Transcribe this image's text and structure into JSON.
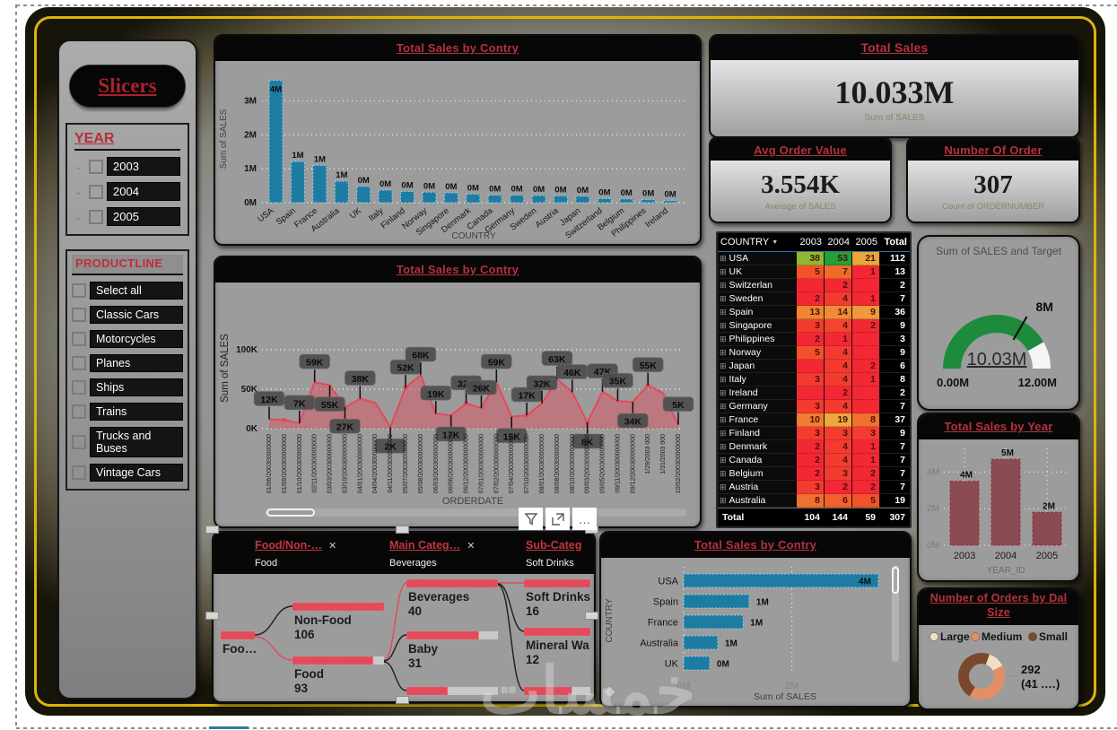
{
  "watermark": "خمسات",
  "colors": {
    "title_red": "#b4323c",
    "teal_bar": "#1e7ca2",
    "teal_bar_edge": "#8fd0e8",
    "line_red": "#e34a5a",
    "area_pink": "rgba(226,78,94,0.45)",
    "maroon_bar": "#8a4b53",
    "maroon_edge": "#9c2f38",
    "gauge_green": "#1d8a3c",
    "gauge_rest": "#f5f5f5",
    "gold_border": "#d9b50b",
    "donut_large": "#efe0c6",
    "donut_medium": "#e38f66",
    "donut_small": "#7a482c"
  },
  "sidebar": {
    "title": "Slicers",
    "year": {
      "label": "YEAR",
      "items": [
        "2003",
        "2004",
        "2005"
      ]
    },
    "productline": {
      "label": "PRODUCTLINE",
      "items": [
        "Select all",
        "Classic Cars",
        "Motorcycles",
        "Planes",
        "Ships",
        "Trains",
        "Trucks and Buses",
        "Vintage Cars"
      ]
    }
  },
  "cards": {
    "total_sales": {
      "title": "Total Sales",
      "value": "10.033M",
      "caption": "Sum of SALES"
    },
    "avg_order": {
      "title": "Avg Order Value",
      "value": "3.554K",
      "caption": "Average of SALES"
    },
    "num_order": {
      "title": "Number Of Order",
      "value": "307",
      "caption": "Count of ORDERNUMBER"
    }
  },
  "toolbar": {
    "filter": "filter",
    "focus": "focus-mode",
    "more": "…"
  },
  "matrix": {
    "columns": [
      "COUNTRY",
      "2003",
      "2004",
      "2005",
      "Total"
    ],
    "rows": [
      {
        "country": "USA",
        "values": [
          "38",
          "53",
          "21"
        ],
        "colors": [
          "#8fb832",
          "#23a038",
          "#e9a63b"
        ],
        "total": "112"
      },
      {
        "country": "UK",
        "values": [
          "5",
          "7",
          "1"
        ],
        "colors": [
          "#f2522a",
          "#f06a2c",
          "#f42735"
        ],
        "total": "13"
      },
      {
        "country": "Switzerlan",
        "values": [
          "",
          "2",
          ""
        ],
        "colors": [
          "#f42735",
          "#f42735",
          "#f42735"
        ],
        "total": "2"
      },
      {
        "country": "Sweden",
        "values": [
          "2",
          "4",
          "1"
        ],
        "colors": [
          "#f42735",
          "#f43b2f",
          "#f42735"
        ],
        "total": "7"
      },
      {
        "country": "Spain",
        "values": [
          "13",
          "14",
          "9"
        ],
        "colors": [
          "#ef8532",
          "#ef8b35",
          "#ef9a38"
        ],
        "total": "36"
      },
      {
        "country": "Singapore",
        "values": [
          "3",
          "4",
          "2"
        ],
        "colors": [
          "#f43b2f",
          "#f4432f",
          "#f42735"
        ],
        "total": "9"
      },
      {
        "country": "Philippines",
        "values": [
          "2",
          "1",
          ""
        ],
        "colors": [
          "#f42735",
          "#f42735",
          "#f42735"
        ],
        "total": "3"
      },
      {
        "country": "Norway",
        "values": [
          "5",
          "4",
          ""
        ],
        "colors": [
          "#f2522a",
          "#f43b2f",
          "#f42735"
        ],
        "total": "9"
      },
      {
        "country": "Japan",
        "values": [
          "",
          "4",
          "2"
        ],
        "colors": [
          "#f42735",
          "#f43b2f",
          "#f42735"
        ],
        "total": "6"
      },
      {
        "country": "Italy",
        "values": [
          "3",
          "4",
          "1"
        ],
        "colors": [
          "#f43b2f",
          "#f43b2f",
          "#f42735"
        ],
        "total": "8"
      },
      {
        "country": "Ireland",
        "values": [
          "",
          "2",
          ""
        ],
        "colors": [
          "#f42735",
          "#f42735",
          "#f42735"
        ],
        "total": "2"
      },
      {
        "country": "Germany",
        "values": [
          "3",
          "4",
          ""
        ],
        "colors": [
          "#f43b2f",
          "#f43b2f",
          "#f42735"
        ],
        "total": "7"
      },
      {
        "country": "France",
        "values": [
          "10",
          "19",
          "8"
        ],
        "colors": [
          "#f07d30",
          "#e9a93c",
          "#f0702d"
        ],
        "total": "37"
      },
      {
        "country": "Finland",
        "values": [
          "3",
          "3",
          "3"
        ],
        "colors": [
          "#f43b2f",
          "#f43b2f",
          "#f43b2f"
        ],
        "total": "9"
      },
      {
        "country": "Denmark",
        "values": [
          "2",
          "4",
          "1"
        ],
        "colors": [
          "#f42735",
          "#f43b2f",
          "#f42735"
        ],
        "total": "7"
      },
      {
        "country": "Canada",
        "values": [
          "2",
          "4",
          "1"
        ],
        "colors": [
          "#f42735",
          "#f43b2f",
          "#f42735"
        ],
        "total": "7"
      },
      {
        "country": "Belgium",
        "values": [
          "2",
          "3",
          "2"
        ],
        "colors": [
          "#f42735",
          "#f43b2f",
          "#f42735"
        ],
        "total": "7"
      },
      {
        "country": "Austria",
        "values": [
          "3",
          "2",
          "2"
        ],
        "colors": [
          "#f43b2f",
          "#f42735",
          "#f42735"
        ],
        "total": "7"
      },
      {
        "country": "Australia",
        "values": [
          "8",
          "6",
          "5"
        ],
        "colors": [
          "#f0702d",
          "#f2612b",
          "#f2522a"
        ],
        "total": "19"
      }
    ],
    "total_row": {
      "label": "Total",
      "values": [
        "104",
        "144",
        "59"
      ],
      "total": "307"
    }
  },
  "tree": {
    "breadcrumbs": [
      {
        "title": "Food/Non-…",
        "close": "✕",
        "value": "Food"
      },
      {
        "title": "Main Categ…",
        "close": "✕",
        "value": "Beverages"
      },
      {
        "title": "Sub-Categ",
        "close": "",
        "value": "Soft Drinks"
      }
    ],
    "root": {
      "label": "Foo…",
      "fill": 100
    },
    "level1": [
      {
        "label": "Non-Food",
        "value": "106",
        "fill": 100
      },
      {
        "label": "Food",
        "value": "93",
        "fill": 88
      }
    ],
    "level2": [
      {
        "label": "Beverages",
        "value": "40",
        "fill": 100
      },
      {
        "label": "Baby",
        "value": "31",
        "fill": 79
      },
      {
        "label": "",
        "value": "",
        "fill": 45
      }
    ],
    "level3": [
      {
        "label": "Soft Drinks",
        "value": "16",
        "fill": 100
      },
      {
        "label": "Mineral Wa",
        "value": "12",
        "fill": 100
      },
      {
        "label": "",
        "value": "",
        "fill": 72
      }
    ]
  },
  "chart_data": [
    {
      "id": "sales_by_country_bar",
      "type": "bar",
      "title": "Total Sales by Contry",
      "xlabel": "COUNTRY",
      "ylabel": "Sum of SALES",
      "y_ticks": [
        "0M",
        "1M",
        "2M",
        "3M"
      ],
      "ylim": [
        0,
        3.75
      ],
      "categories": [
        "USA",
        "Spain",
        "France",
        "Australia",
        "UK",
        "Italy",
        "Finland",
        "Norway",
        "Singapore",
        "Denmark",
        "Canada",
        "Germany",
        "Sweden",
        "Austria",
        "Japan",
        "Switzerland",
        "Belgium",
        "Philippines",
        "Ireland"
      ],
      "values": [
        3.6,
        1.21,
        1.1,
        0.63,
        0.48,
        0.37,
        0.33,
        0.31,
        0.29,
        0.25,
        0.22,
        0.22,
        0.21,
        0.2,
        0.19,
        0.12,
        0.11,
        0.09,
        0.06
      ],
      "labels": [
        "4M",
        "1M",
        "1M",
        "1M",
        "0M",
        "0M",
        "0M",
        "0M",
        "0M",
        "0M",
        "0M",
        "0M",
        "0M",
        "0M",
        "0M",
        "0M",
        "0M",
        "0M",
        "0M"
      ]
    },
    {
      "id": "sales_by_orderdate_area",
      "type": "area",
      "title": "Total Sales by Contry",
      "xlabel": "ORDERDATE",
      "ylabel": "Sum of SALES",
      "y_ticks": [
        "0K",
        "50K",
        "100K"
      ],
      "ylim": [
        0,
        113
      ],
      "x": [
        "01/06/200300000000",
        "01/09/200300000000",
        "01/10/200300000000",
        "02/11/200300000000",
        "03/03/200300000000",
        "03/10/200300000000",
        "04/01/200300000000",
        "04/04/200300000000",
        "04/11/200300000000",
        "05/07/200300000000",
        "05/08/200300000000",
        "06/03/200300000000",
        "06/06/200300000000",
        "06/12/200300000000",
        "07/01/200300000000",
        "07/02/200300000000",
        "07/04/200300000000",
        "07/10/200300000000",
        "08/01/200300000000",
        "08/08/200300000000",
        "08/10/200300000000",
        "09/03/200300000000",
        "09/05/200300000000",
        "09/11/200300000000",
        "09/12/200300000000",
        "1/29/2003 000",
        "1/31/2003 000",
        "10/02/200300000000"
      ],
      "values": [
        12,
        11,
        7,
        59,
        55,
        27,
        38,
        33,
        2,
        52,
        68,
        19,
        17,
        32,
        26,
        59,
        15,
        17,
        32,
        63,
        46,
        8,
        47,
        35,
        34,
        55,
        45,
        5
      ],
      "labels": [
        "12K",
        null,
        "7K",
        "59K",
        "55K",
        "27K",
        "38K",
        null,
        "2K",
        "52K",
        "68K",
        "19K",
        "17K",
        "32K",
        "26K",
        "59K",
        "15K",
        "17K",
        "32K",
        "63K",
        "46K",
        "8K",
        "47K",
        "35K",
        "34K",
        "55K",
        null,
        "5K"
      ]
    },
    {
      "id": "sales_by_country_hbar",
      "type": "hbar",
      "title": "Total Sales by Contry",
      "xlabel": "Sum of SALES",
      "ylabel": "COUNTRY",
      "x_ticks": [
        "0M",
        "2M"
      ],
      "xlim": [
        0,
        3.75
      ],
      "categories": [
        "USA",
        "Spain",
        "France",
        "Australia",
        "UK"
      ],
      "values": [
        3.6,
        1.21,
        1.1,
        0.63,
        0.48
      ],
      "labels": [
        "4M",
        "1M",
        "1M",
        "1M",
        "0M"
      ]
    },
    {
      "id": "sales_by_year_bar",
      "type": "bar",
      "title": "Total Sales by Year",
      "xlabel": "YEAR_ID",
      "ylabel": "",
      "y_ticks": [
        "0M",
        "2M",
        "4M"
      ],
      "ylim": [
        0,
        5.1
      ],
      "categories": [
        "2003",
        "2004",
        "2005"
      ],
      "values": [
        3.5,
        4.7,
        1.8
      ],
      "labels": [
        "4M",
        "5M",
        "2M"
      ]
    },
    {
      "id": "sales_gauge",
      "type": "gauge",
      "title": "Sum of SALES and Target",
      "value": 10.03,
      "value_label": "10.03M",
      "min": 0,
      "max": 12,
      "min_label": "0.00M",
      "max_label": "12.00M",
      "target": 8,
      "target_label": "8M"
    },
    {
      "id": "orders_by_deal_size_donut",
      "type": "donut",
      "title": "Number of Orders by Dal Size",
      "legend": [
        "Large",
        "Medium",
        "Small"
      ],
      "slice_pcts": [
        12,
        41,
        47
      ],
      "callout_lines": [
        "292",
        "(41 .…)"
      ]
    }
  ]
}
